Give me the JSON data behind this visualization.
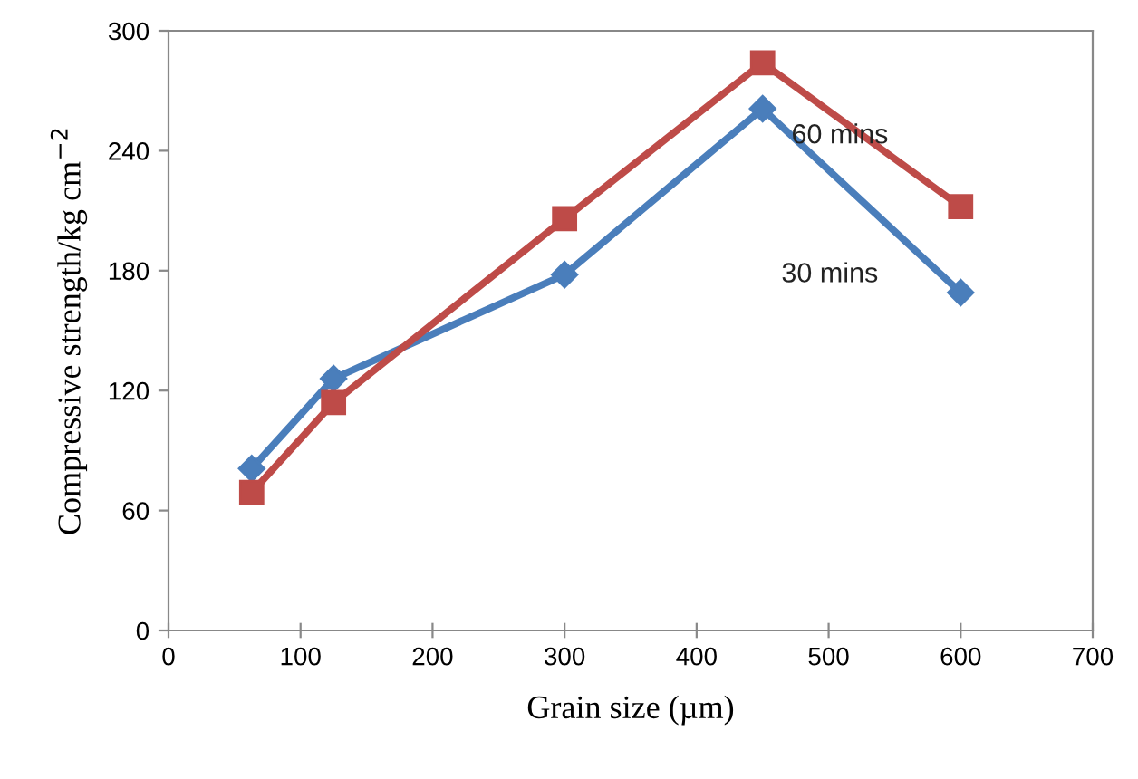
{
  "chart_data": {
    "type": "line",
    "xlabel": "Grain size (µm)",
    "ylabel": "Compressive strength/kg cm$^{−2}$",
    "xlim": [
      0,
      700
    ],
    "xticks": [
      0,
      100,
      200,
      300,
      400,
      500,
      600,
      700
    ],
    "ylim": [
      0,
      300
    ],
    "yticks": [
      0,
      60,
      120,
      180,
      240,
      300
    ],
    "grid": false,
    "legend": false,
    "line_style": "solid",
    "series": [
      {
        "name": "30 mins",
        "color": "#4a7ebb",
        "marker": "diamond",
        "x": [
          63,
          125,
          300,
          450,
          600
        ],
        "values": [
          81,
          126,
          178,
          261,
          169
        ]
      },
      {
        "name": "60 mins",
        "color": "#be4b48",
        "marker": "square",
        "x": [
          63,
          125,
          300,
          450,
          600
        ],
        "values": [
          69,
          114,
          206,
          284,
          212
        ]
      }
    ]
  }
}
